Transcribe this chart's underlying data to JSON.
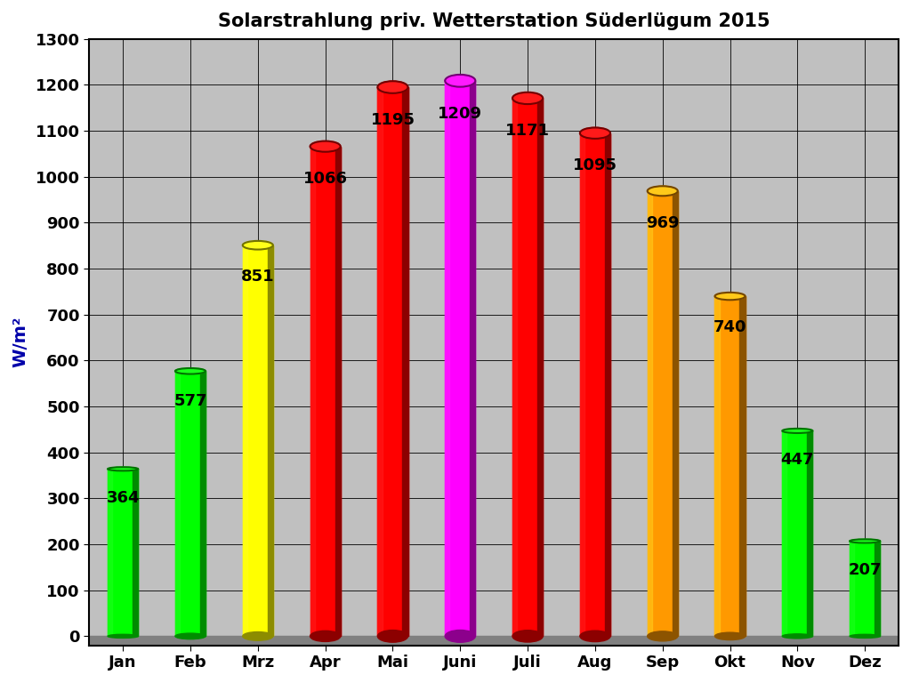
{
  "title": "Solarstrahlung priv. Wetterstation Süderlügum 2015",
  "categories": [
    "Jan",
    "Feb",
    "Mrz",
    "Apr",
    "Mai",
    "Juni",
    "Juli",
    "Aug",
    "Sep",
    "Okt",
    "Nov",
    "Dez"
  ],
  "values": [
    364,
    577,
    851,
    1066,
    1195,
    1209,
    1171,
    1095,
    969,
    740,
    447,
    207
  ],
  "colors": [
    "#00ff00",
    "#00ff00",
    "#ffff00",
    "#ff0000",
    "#ff0000",
    "#ff00ff",
    "#ff0000",
    "#ff0000",
    "#ff9900",
    "#ff9900",
    "#00ff00",
    "#00ff00"
  ],
  "ylabel": "W/m²",
  "ylim": [
    0,
    1300
  ],
  "yticks": [
    0,
    100,
    200,
    300,
    400,
    500,
    600,
    700,
    800,
    900,
    1000,
    1100,
    1200,
    1300
  ],
  "plot_bg_color": "#c0c0c0",
  "fig_bg_color": "#ffffff",
  "title_fontsize": 15,
  "label_fontsize": 14,
  "tick_fontsize": 13,
  "value_fontsize": 13,
  "bar_width": 0.45,
  "tick_color": "#000080",
  "ylabel_color": "#0000aa"
}
